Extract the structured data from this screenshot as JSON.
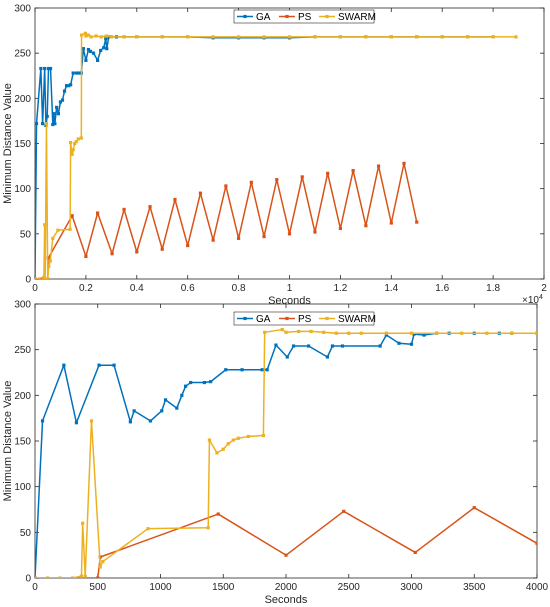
{
  "chart_data": [
    {
      "type": "line",
      "xlabel": "Seconds",
      "ylabel": "Minimum Distance Value",
      "xlim": [
        0,
        20000
      ],
      "ylim": [
        0,
        300
      ],
      "xticks": [
        0,
        2000,
        4000,
        6000,
        8000,
        10000,
        12000,
        14000,
        16000,
        18000,
        20000
      ],
      "xtick_labels": [
        "0",
        "0.2",
        "0.4",
        "0.6",
        "0.8",
        "1",
        "1.2",
        "1.4",
        "1.6",
        "1.8",
        "2"
      ],
      "x_exponent_label": "×10",
      "x_exponent_power": "4",
      "yticks": [
        0,
        50,
        100,
        150,
        200,
        250,
        300
      ],
      "ytick_labels": [
        "0",
        "50",
        "100",
        "150",
        "200",
        "250",
        "300"
      ],
      "legend_position": "top-center",
      "grid": false,
      "series": [
        {
          "name": "GA",
          "color": "#0072BD",
          "x": [
            0,
            60,
            230,
            300,
            380,
            430,
            480,
            530,
            610,
            700,
            740,
            780,
            850,
            920,
            1000,
            1080,
            1160,
            1240,
            1330,
            1400,
            1500,
            1640,
            1760,
            1820,
            1900,
            2000,
            2100,
            2180,
            2300,
            2460,
            2580,
            2700,
            2780,
            2820,
            2900,
            3000,
            3200,
            3500,
            4000,
            5000,
            6000,
            7000,
            8000,
            9000,
            10000,
            11000,
            12000,
            13000,
            14000,
            15000,
            16000,
            17000,
            18000
          ],
          "y": [
            0,
            172,
            233,
            172,
            233,
            170,
            180,
            233,
            233,
            171,
            183,
            172,
            190,
            183,
            196,
            198,
            208,
            214,
            214,
            215,
            228,
            228,
            228,
            228,
            255,
            242,
            254,
            252,
            250,
            242,
            253,
            256,
            266,
            255,
            268,
            268,
            268,
            268,
            268,
            268,
            268,
            267,
            267,
            267,
            267,
            268,
            268,
            268,
            268,
            268,
            268,
            268,
            268
          ]
        },
        {
          "name": "PS",
          "color": "#D95319",
          "x": [
            0,
            400,
            500,
            520,
            1460,
            2000,
            2460,
            3030,
            3500,
            4000,
            4520,
            5000,
            5500,
            6000,
            6500,
            7000,
            7500,
            8000,
            8500,
            9000,
            9500,
            10000,
            10500,
            11000,
            11500,
            12000,
            12500,
            13000,
            13500,
            14000,
            14500,
            15000
          ],
          "y": [
            0,
            0,
            0,
            23,
            70,
            25,
            73,
            28,
            77,
            30,
            80,
            33,
            88,
            37,
            95,
            43,
            103,
            45,
            107,
            47,
            110,
            50,
            113,
            52,
            117,
            56,
            120,
            59,
            125,
            62,
            128,
            63
          ]
        },
        {
          "name": "SWARM",
          "color": "#EDB120",
          "x": [
            0,
            350,
            380,
            400,
            450,
            500,
            540,
            600,
            700,
            900,
            1380,
            1400,
            1460,
            1500,
            1560,
            1620,
            1700,
            1820,
            1830,
            1980,
            2000,
            2100,
            2200,
            2400,
            2600,
            2800,
            3000,
            3500,
            4000,
            5000,
            6000,
            7000,
            8000,
            9000,
            10000,
            11000,
            12000,
            13000,
            14000,
            15000,
            16000,
            17000,
            18000,
            18900
          ],
          "y": [
            0,
            2,
            60,
            0,
            172,
            0,
            14,
            20,
            45,
            54,
            55,
            151,
            138,
            143,
            150,
            152,
            155,
            156,
            270,
            272,
            269,
            270,
            268,
            269,
            268,
            269,
            268,
            268,
            268,
            268,
            268,
            268,
            268,
            268,
            268,
            268,
            268,
            268,
            268,
            268,
            268,
            268,
            268,
            268
          ]
        }
      ]
    },
    {
      "type": "line",
      "xlabel": "Seconds",
      "ylabel": "Minimum Distance Value",
      "xlim": [
        0,
        4000
      ],
      "ylim": [
        0,
        300
      ],
      "xticks": [
        0,
        500,
        1000,
        1500,
        2000,
        2500,
        3000,
        3500,
        4000
      ],
      "xtick_labels": [
        "0",
        "500",
        "1000",
        "1500",
        "2000",
        "2500",
        "3000",
        "3500",
        "4000"
      ],
      "yticks": [
        0,
        50,
        100,
        150,
        200,
        250,
        300
      ],
      "ytick_labels": [
        "0",
        "50",
        "100",
        "150",
        "200",
        "250",
        "300"
      ],
      "legend_position": "top-center",
      "grid": false,
      "series": [
        {
          "name": "GA",
          "color": "#0072BD",
          "x": [
            0,
            60,
            230,
            330,
            510,
            630,
            760,
            790,
            920,
            1010,
            1040,
            1130,
            1170,
            1200,
            1240,
            1350,
            1400,
            1520,
            1650,
            1810,
            1850,
            1920,
            2010,
            2060,
            2180,
            2330,
            2370,
            2450,
            2750,
            2800,
            2900,
            3000,
            3020,
            3100,
            3200,
            3300,
            3500,
            3700,
            3800,
            4000
          ],
          "y": [
            0,
            172,
            233,
            170,
            233,
            233,
            171,
            183,
            172,
            183,
            195,
            186,
            200,
            210,
            214,
            214,
            215,
            228,
            228,
            228,
            228,
            255,
            242,
            254,
            254,
            242,
            254,
            254,
            254,
            266,
            257,
            256,
            267,
            266,
            268,
            268,
            268,
            268,
            268,
            268
          ]
        },
        {
          "name": "PS",
          "color": "#D95319",
          "x": [
            0,
            400,
            500,
            520,
            1460,
            2000,
            2460,
            3030,
            3500,
            4000
          ],
          "y": [
            0,
            0,
            0,
            23,
            70,
            25,
            73,
            28,
            77,
            38
          ]
        },
        {
          "name": "SWARM",
          "color": "#EDB120",
          "x": [
            0,
            100,
            200,
            300,
            370,
            380,
            400,
            450,
            520,
            540,
            900,
            1380,
            1390,
            1450,
            1500,
            1540,
            1580,
            1620,
            1700,
            1820,
            1830,
            1970,
            2000,
            2100,
            2200,
            2300,
            2400,
            2500,
            2600,
            2800,
            3000,
            3200,
            3400,
            3600,
            3800,
            4000
          ],
          "y": [
            0,
            0,
            0,
            0,
            2,
            60,
            2,
            172,
            12,
            18,
            54,
            55,
            151,
            137,
            141,
            147,
            151,
            153,
            155,
            156,
            269,
            272,
            269,
            270,
            270,
            269,
            268,
            268,
            268,
            268,
            268,
            268,
            268,
            268,
            268,
            268
          ]
        }
      ]
    }
  ]
}
